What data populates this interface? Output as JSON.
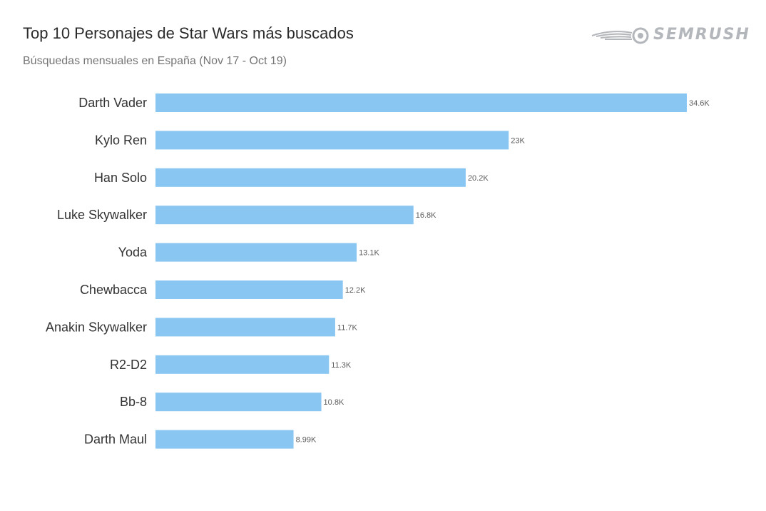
{
  "header": {
    "title": "Top 10 Personajes de Star Wars más buscados",
    "subtitle": "Búsquedas mensuales en España (Nov 17 - Oct 19)"
  },
  "logo": {
    "text": "SEMRUSH",
    "icon": "semrush-fireball-icon",
    "color": "#b3b6ba"
  },
  "chart_data": {
    "type": "bar",
    "orientation": "horizontal",
    "categories": [
      "Darth Vader",
      "Kylo Ren",
      "Han Solo",
      "Luke Skywalker",
      "Yoda",
      "Chewbacca",
      "Anakin Skywalker",
      "R2-D2",
      "Bb-8",
      "Darth Maul"
    ],
    "values": [
      34600,
      23000,
      20200,
      16800,
      13100,
      12200,
      11700,
      11300,
      10800,
      8990
    ],
    "value_labels": [
      "34.6K",
      "23K",
      "20.2K",
      "16.8K",
      "13.1K",
      "12.2K",
      "11.7K",
      "11.3K",
      "10.8K",
      "8.99K"
    ],
    "title": "Top 10 Personajes de Star Wars más buscados",
    "subtitle": "Búsquedas mensuales en España (Nov 17 - Oct 19)",
    "xlim": [
      0,
      34600
    ],
    "grid": false,
    "legend": "none",
    "bar_color": "#89c6f1"
  }
}
